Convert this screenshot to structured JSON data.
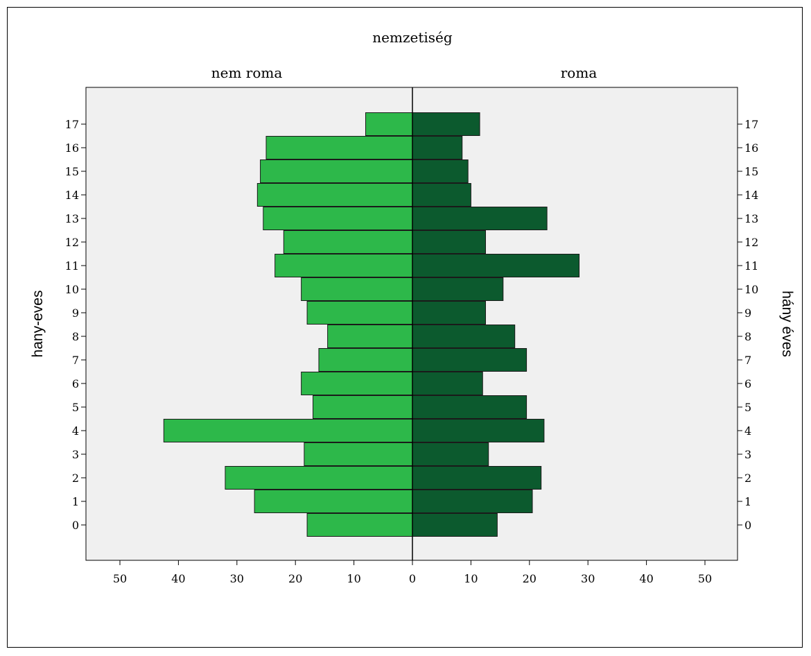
{
  "chart_data": {
    "type": "bar",
    "orientation": "horizontal-population-pyramid",
    "title": "nemzetiség",
    "categories": [
      "0",
      "1",
      "2",
      "3",
      "4",
      "5",
      "6",
      "7",
      "8",
      "9",
      "10",
      "11",
      "12",
      "13",
      "14",
      "15",
      "16",
      "17"
    ],
    "series": [
      {
        "name": "nem roma",
        "side": "left",
        "values": [
          18,
          27,
          32,
          18.5,
          42.5,
          17,
          19,
          16,
          14.5,
          18,
          19,
          23.5,
          22,
          25.5,
          26.5,
          26,
          25,
          8
        ]
      },
      {
        "name": "roma",
        "side": "right",
        "values": [
          14.5,
          20.5,
          22,
          13,
          22.5,
          19.5,
          12,
          19.5,
          17.5,
          12.5,
          15.5,
          28.5,
          12.5,
          23,
          10,
          9.5,
          8.5,
          11.5
        ]
      }
    ],
    "xticks": [
      "50",
      "40",
      "30",
      "20",
      "10",
      "0",
      "10",
      "20",
      "30",
      "40",
      "50"
    ],
    "xlim": [
      -55,
      55
    ],
    "ylabel_left": "hany-eves",
    "ylabel_right": "hány éves",
    "colors": {
      "nem roma": "#2db84a",
      "roma": "#0c5a2e",
      "plot_bg": "#f0f0f0"
    }
  }
}
